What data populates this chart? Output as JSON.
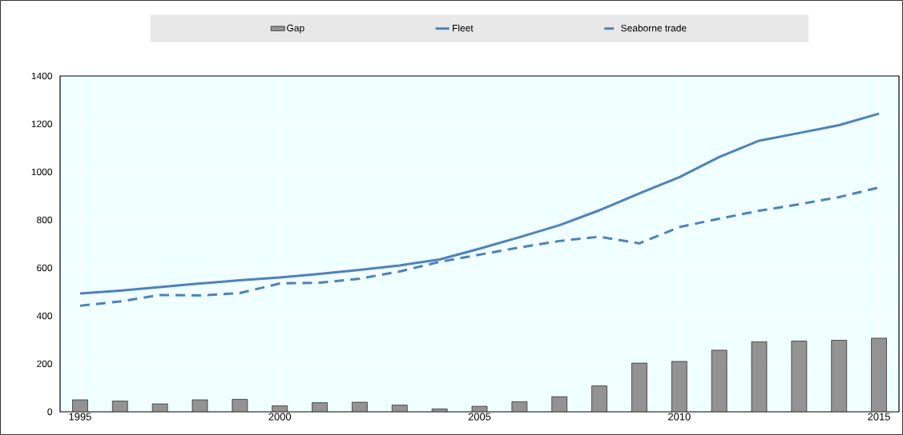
{
  "chart_data": {
    "type": "line",
    "x": [
      1995,
      1996,
      1997,
      1998,
      1999,
      2000,
      2001,
      2002,
      2003,
      2004,
      2005,
      2006,
      2007,
      2008,
      2009,
      2010,
      2011,
      2012,
      2013,
      2014,
      2015
    ],
    "series": [
      {
        "name": "Gap",
        "type": "bar",
        "color": "#939393",
        "values": [
          50,
          45,
          33,
          50,
          52,
          25,
          38,
          40,
          28,
          12,
          23,
          42,
          63,
          108,
          203,
          210,
          257,
          292,
          295,
          298,
          307
        ]
      },
      {
        "name": "Fleet",
        "color": "#4f81bd",
        "line_style": "solid",
        "values": [
          493,
          505,
          520,
          535,
          548,
          560,
          575,
          592,
          610,
          635,
          680,
          728,
          778,
          840,
          910,
          978,
          1062,
          1130,
          1162,
          1195,
          1243
        ]
      },
      {
        "name": "Seaborne trade",
        "color": "#4f81bd",
        "line_style": "dashed",
        "values": [
          442,
          460,
          487,
          485,
          495,
          535,
          538,
          555,
          585,
          625,
          655,
          685,
          712,
          730,
          702,
          770,
          805,
          838,
          865,
          895,
          935
        ]
      }
    ],
    "xlim": [
      1994.5,
      2015.5
    ],
    "xticks": [
      1995,
      2000,
      2005,
      2010,
      2015
    ],
    "ylim": [
      0,
      1400
    ],
    "yticks": [
      0,
      200,
      400,
      600,
      800,
      1000,
      1200,
      1400
    ],
    "grid": true,
    "legend": "top",
    "marker": "none"
  }
}
